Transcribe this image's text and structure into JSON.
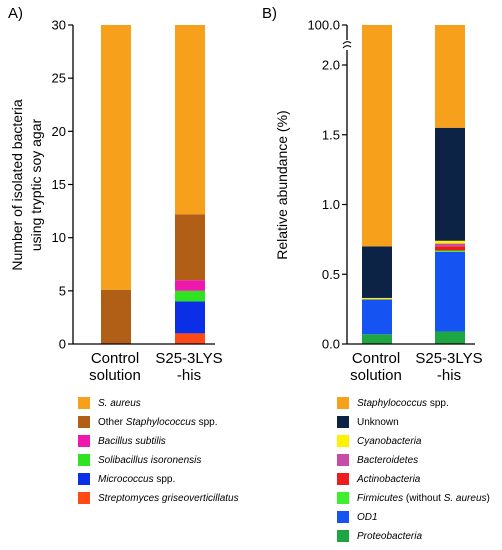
{
  "chart_data": [
    {
      "panel": "A)",
      "type": "bar",
      "stacked": true,
      "ylabel": [
        "Number of isolated bacteria",
        "using tryptic soy agar"
      ],
      "ylim": [
        0,
        30
      ],
      "yticks": [
        0,
        5,
        10,
        15,
        20,
        25,
        30
      ],
      "ytick_labels": [
        "0",
        "5",
        "10",
        "15",
        "20",
        "25",
        "30"
      ],
      "categories": [
        [
          "Control",
          "solution"
        ],
        [
          "S25-3LYS",
          "-his"
        ]
      ],
      "series": [
        {
          "name": "Streptomyces griseoverticillatus",
          "color": "#ff4a16",
          "values": [
            0,
            1
          ]
        },
        {
          "name": "Micrococcus spp.",
          "color": "#0a2fe6",
          "values": [
            0,
            3
          ]
        },
        {
          "name": "Solibacillus isoronensis",
          "color": "#2ee31f",
          "values": [
            0,
            1
          ]
        },
        {
          "name": "Bacillus subtilis",
          "color": "#ee18ad",
          "values": [
            0,
            1
          ]
        },
        {
          "name": "Other Staphylococcus spp.",
          "color": "#b15f17",
          "values": [
            5.1,
            6.2
          ]
        },
        {
          "name": "S. aureus",
          "color": "#f7a01b",
          "values": [
            24.9,
            17.8
          ]
        }
      ],
      "legend": [
        {
          "color": "#f7a01b",
          "parts": [
            [
              "S. aureus",
              true
            ]
          ]
        },
        {
          "color": "#b15f17",
          "parts": [
            [
              "Other ",
              false
            ],
            [
              "Staphylococcus",
              true
            ],
            [
              " spp.",
              false
            ]
          ]
        },
        {
          "color": "#ee18ad",
          "parts": [
            [
              "Bacillus subtilis",
              true
            ]
          ]
        },
        {
          "color": "#2ee31f",
          "parts": [
            [
              "Solibacillus isoronensis",
              true
            ]
          ]
        },
        {
          "color": "#0a2fe6",
          "parts": [
            [
              "Micrococcus",
              true
            ],
            [
              " spp.",
              false
            ]
          ]
        },
        {
          "color": "#ff4a16",
          "parts": [
            [
              "Streptomyces griseoverticillatus",
              true
            ]
          ]
        }
      ]
    },
    {
      "panel": "B)",
      "type": "bar",
      "stacked": true,
      "axis_break": true,
      "ylabel": [
        "Relative abundance (%)"
      ],
      "ylim": [
        0,
        100
      ],
      "yticks": [
        0,
        0.5,
        1.0,
        1.5,
        2.0,
        100.0
      ],
      "ytick_labels": [
        "0.0",
        "0.5",
        "1.0",
        "1.5",
        "2.0",
        "100.0"
      ],
      "categories": [
        [
          "Control",
          "solution"
        ],
        [
          "S25-3LYS",
          "-his"
        ]
      ],
      "series": [
        {
          "name": "Proteobacteria",
          "color": "#1ea642",
          "values": [
            0.07,
            0.09
          ]
        },
        {
          "name": "OD1",
          "color": "#1554f2",
          "values": [
            0.25,
            0.57
          ]
        },
        {
          "name": "Firmicutes (without S. aureus)",
          "color": "#3ef02c",
          "values": [
            0.0,
            0.01
          ]
        },
        {
          "name": "Actinobacteria",
          "color": "#ee1c1c",
          "values": [
            0.0,
            0.03
          ]
        },
        {
          "name": "Bacteroidetes",
          "color": "#c64ca6",
          "values": [
            0.0,
            0.02
          ]
        },
        {
          "name": "Cyanobacteria",
          "color": "#fff200",
          "values": [
            0.01,
            0.02
          ]
        },
        {
          "name": "Unknown",
          "color": "#0d2346",
          "values": [
            0.37,
            0.81
          ]
        },
        {
          "name": "Staphylococcus spp.",
          "color": "#f7a01b",
          "values": [
            99.3,
            98.45
          ]
        }
      ],
      "legend": [
        {
          "color": "#f7a01b",
          "parts": [
            [
              "Staphylococcus",
              true
            ],
            [
              " spp.",
              false
            ]
          ]
        },
        {
          "color": "#0d2346",
          "parts": [
            [
              "Unknown",
              false
            ]
          ]
        },
        {
          "color": "#fff200",
          "parts": [
            [
              "Cyanobacteria",
              true
            ]
          ]
        },
        {
          "color": "#c64ca6",
          "parts": [
            [
              "Bacteroidetes",
              true
            ]
          ]
        },
        {
          "color": "#ee1c1c",
          "parts": [
            [
              "Actinobacteria",
              true
            ]
          ]
        },
        {
          "color": "#3ef02c",
          "parts": [
            [
              "Firmicutes",
              true
            ],
            [
              " (without ",
              false
            ],
            [
              "S. aureus",
              true
            ],
            [
              ")",
              false
            ]
          ]
        },
        {
          "color": "#1554f2",
          "parts": [
            [
              "OD1",
              true
            ]
          ]
        },
        {
          "color": "#1ea642",
          "parts": [
            [
              "Proteobacteria",
              true
            ]
          ]
        }
      ]
    }
  ]
}
